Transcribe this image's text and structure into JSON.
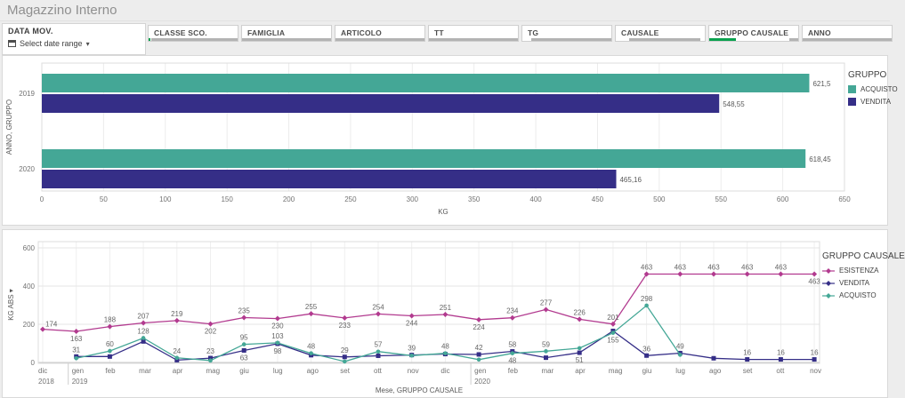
{
  "app": {
    "title": "Magazzino Interno"
  },
  "colors": {
    "acquisto": "#44a796",
    "vendita": "#352e87",
    "esistenza": "#b23a8f",
    "selection_green": "#0aa14e",
    "scrollbar_gray": "#b3b3b3"
  },
  "filters": {
    "date": {
      "label": "DATA MOV.",
      "placeholder": "Select date range",
      "icon": "calendar-icon"
    },
    "boxes": [
      {
        "label": "CLASSE SCO.",
        "segments": [
          {
            "c": "green",
            "l": 0,
            "w": 2
          },
          {
            "c": "gray",
            "l": 3,
            "w": 97
          }
        ]
      },
      {
        "label": "FAMIGLIA",
        "segments": [
          {
            "c": "gray",
            "l": 0,
            "w": 100
          }
        ]
      },
      {
        "label": "ARTICOLO",
        "segments": [
          {
            "c": "gray",
            "l": 0,
            "w": 100
          }
        ]
      },
      {
        "label": "TT",
        "segments": [
          {
            "c": "gray",
            "l": 0,
            "w": 100
          }
        ]
      },
      {
        "label": "TG",
        "segments": [
          {
            "c": "gray",
            "l": 10,
            "w": 90
          }
        ]
      },
      {
        "label": "CAUSALE",
        "segments": [
          {
            "c": "gray",
            "l": 15,
            "w": 80
          }
        ]
      },
      {
        "label": "GRUPPO CAUSALE",
        "segments": [
          {
            "c": "green",
            "l": 0,
            "w": 30
          },
          {
            "c": "gray",
            "l": 90,
            "w": 10
          }
        ]
      },
      {
        "label": "ANNO",
        "segments": [
          {
            "c": "gray",
            "l": 0,
            "w": 100
          }
        ]
      }
    ]
  },
  "chart_data": [
    {
      "type": "bar",
      "orientation": "horizontal",
      "categories": [
        "2019",
        "2020"
      ],
      "series": [
        {
          "name": "ACQUISTO",
          "color": "acquisto",
          "values": [
            621.5,
            618.45
          ],
          "labels": [
            "621,5",
            "618,45"
          ]
        },
        {
          "name": "VENDITA",
          "color": "vendita",
          "values": [
            548.55,
            465.16
          ],
          "labels": [
            "548,55",
            "465,16"
          ]
        }
      ],
      "xlabel": "KG",
      "ylabel": "ANNO, GRUPPO",
      "xlim": [
        0,
        650
      ],
      "xticks": [
        0,
        50,
        100,
        150,
        200,
        250,
        300,
        350,
        400,
        450,
        500,
        550,
        600,
        650
      ],
      "grid": true,
      "legend_title": "GRUPPO",
      "legend_position": "right"
    },
    {
      "type": "line",
      "categories": [
        "dic",
        "gen",
        "feb",
        "mar",
        "apr",
        "mag",
        "giu",
        "lug",
        "ago",
        "set",
        "ott",
        "nov",
        "dic",
        "gen",
        "feb",
        "mar",
        "apr",
        "mag",
        "giu",
        "lug",
        "ago",
        "set",
        "ott",
        "nov"
      ],
      "year_markers": [
        {
          "index": 0,
          "label": "2018"
        },
        {
          "index": 1,
          "label": "2019"
        },
        {
          "index": 13,
          "label": "2020"
        }
      ],
      "series": [
        {
          "name": "ESISTENZA",
          "color": "esistenza",
          "marker": "diamond",
          "values": [
            174,
            163,
            188,
            207,
            219,
            202,
            235,
            230,
            255,
            233,
            254,
            244,
            251,
            224,
            234,
            277,
            226,
            201,
            463,
            463,
            463,
            463,
            463,
            463
          ],
          "labels": [
            "174",
            "163",
            "188",
            "207",
            "219",
            "202",
            "235",
            "230",
            "255",
            "233",
            "254",
            "244",
            "251",
            "224",
            "234",
            "277",
            "226",
            "201",
            "463",
            "463",
            "463",
            "463",
            "463",
            "463"
          ],
          "label_pos": [
            "r",
            "b",
            "a",
            "a",
            "a",
            "b",
            "a",
            "b",
            "a",
            "b",
            "a",
            "b",
            "a",
            "b",
            "a",
            "a",
            "a",
            "a",
            "a",
            "a",
            "a",
            "a",
            "a",
            "b"
          ]
        },
        {
          "name": "VENDITA",
          "color": "vendita",
          "marker": "square",
          "values": [
            null,
            31,
            31,
            110,
            12,
            23,
            63,
            98,
            38,
            29,
            35,
            39,
            44,
            42,
            58,
            25,
            51,
            165,
            36,
            49,
            22,
            16,
            16,
            16
          ],
          "labels": [
            null,
            "31",
            null,
            null,
            null,
            "23",
            "63",
            "98",
            null,
            "29",
            null,
            "39",
            null,
            "42",
            "58",
            null,
            "51",
            null,
            "36",
            "49",
            null,
            "16",
            "16",
            "16"
          ],
          "label_pos": [
            null,
            "a",
            null,
            null,
            null,
            "a",
            "b",
            "b",
            null,
            "a",
            null,
            "a",
            null,
            "a",
            "a",
            null,
            "b",
            null,
            "a",
            "a",
            null,
            "a",
            "a",
            "a"
          ]
        },
        {
          "name": "ACQUISTO",
          "color": "acquisto",
          "marker": "circle",
          "values": [
            null,
            22,
            60,
            128,
            24,
            10,
            95,
            103,
            48,
            5,
            57,
            36,
            48,
            15,
            48,
            59,
            75,
            155,
            298,
            40,
            null,
            null,
            null,
            null
          ],
          "labels": [
            null,
            null,
            "60",
            "128",
            "24",
            null,
            "95",
            "103",
            "48",
            null,
            "57",
            null,
            "48",
            null,
            "48",
            "59",
            null,
            "155",
            "298",
            null,
            null,
            null,
            null,
            null
          ],
          "label_pos": [
            null,
            null,
            "a",
            "a",
            "a",
            null,
            "a",
            "a",
            "a",
            null,
            "a",
            null,
            "a",
            null,
            "b",
            "a",
            null,
            "b",
            "a",
            null,
            null,
            null,
            null,
            null
          ]
        }
      ],
      "xlabel": "Mese, GRUPPO CAUSALE",
      "ylabel": "KG ABS",
      "ylim": [
        0,
        600
      ],
      "yticks": [
        0,
        200,
        400,
        600
      ],
      "grid": true,
      "legend_title": "GRUPPO CAUSALE",
      "legend_position": "right"
    }
  ]
}
